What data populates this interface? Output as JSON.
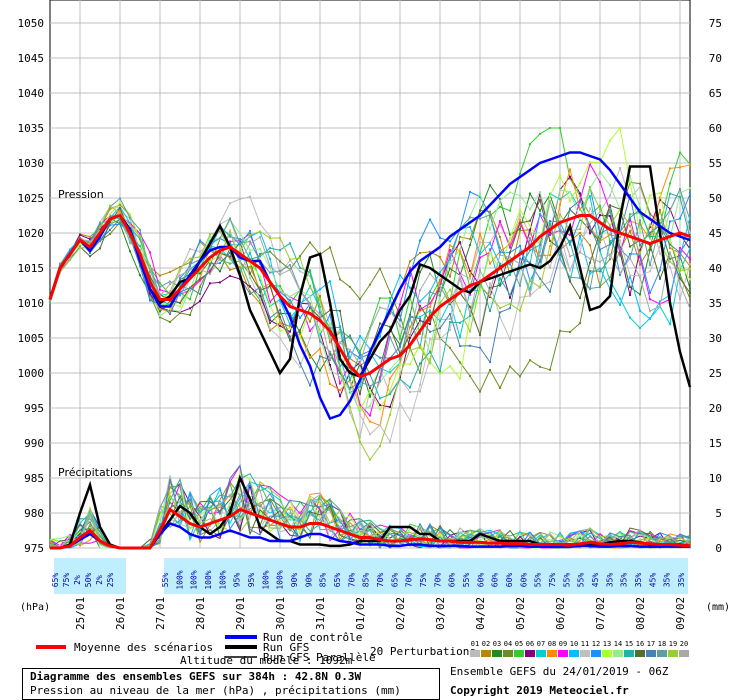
{
  "chart_data": {
    "type": "line",
    "pressure_label": "Pression",
    "precip_label": "Précipitations",
    "left_axis_unit": "(hPa)",
    "right_axis_unit": "(mm)",
    "left_ticks": [
      1050,
      1045,
      1040,
      1035,
      1030,
      1025,
      1020,
      1015,
      1010,
      1005,
      1000,
      995,
      990,
      985,
      980,
      975
    ],
    "right_ticks": [
      75,
      70,
      65,
      60,
      55,
      50,
      45,
      40,
      35,
      30,
      25,
      20,
      15,
      10,
      5,
      0
    ],
    "date_labels": [
      "25/01",
      "26/01",
      "27/01",
      "28/01",
      "29/01",
      "30/01",
      "31/01",
      "01/02",
      "02/02",
      "03/02",
      "04/02",
      "05/02",
      "06/02",
      "07/02",
      "08/02",
      "09/02"
    ],
    "precip_prob_labels": [
      "65%",
      "75%",
      "2%",
      "50%",
      "2%",
      "25%",
      "55%",
      "100%",
      "100%",
      "100%",
      "100%",
      "95%",
      "95%",
      "100%",
      "100%",
      "90%",
      "90%",
      "85%",
      "65%",
      "70%",
      "85%",
      "70%",
      "65%",
      "70%",
      "75%",
      "70%",
      "60%",
      "55%",
      "60%",
      "60%",
      "60%",
      "60%",
      "55%",
      "75%",
      "55%",
      "55%",
      "45%",
      "35%",
      "35%",
      "35%",
      "45%",
      "35%",
      "35%"
    ],
    "x_hours": [
      0,
      6,
      12,
      18,
      24,
      30,
      36,
      42,
      48,
      54,
      60,
      66,
      72,
      78,
      84,
      90,
      96,
      102,
      108,
      114,
      120,
      126,
      132,
      138,
      144,
      150,
      156,
      162,
      168,
      174,
      180,
      186,
      192,
      198,
      204,
      210,
      216,
      222,
      228,
      234,
      240,
      246,
      252,
      258,
      264,
      270,
      276,
      282,
      288,
      294,
      300,
      306,
      312,
      318,
      324,
      330,
      336,
      342,
      348,
      354,
      360,
      366,
      372,
      378,
      384
    ],
    "series": [
      {
        "name": "Moyenne des scénarios",
        "color": "#ff0000",
        "pressure": [
          1010.5,
          1015,
          1017,
          1019,
          1018,
          1020,
          1022,
          1022.5,
          1020,
          1017,
          1013,
          1010.5,
          1010.5,
          1012,
          1013.5,
          1015,
          1016.5,
          1017.5,
          1018,
          1017,
          1016,
          1015,
          1013,
          1011,
          1009.5,
          1009,
          1008.5,
          1007.5,
          1006,
          1003.5,
          1001,
          999.5,
          1000,
          1001,
          1002,
          1002.5,
          1004,
          1006,
          1008,
          1009.5,
          1010.5,
          1011.5,
          1012.5,
          1013,
          1014,
          1015,
          1016,
          1017,
          1018,
          1019.5,
          1020.5,
          1021.5,
          1022,
          1022.5,
          1022.5,
          1021.5,
          1020.5,
          1020,
          1019.5,
          1019,
          1018.5,
          1019,
          1019.5,
          1020,
          1019.5
        ],
        "precip": [
          0,
          0,
          0.3,
          1.5,
          2.5,
          1,
          0.3,
          0,
          0,
          0,
          0,
          2.5,
          5.5,
          4.5,
          3.5,
          3,
          3.5,
          4,
          4.5,
          5.5,
          5,
          4.5,
          4,
          3.5,
          3,
          3,
          3.5,
          3.5,
          3,
          2.5,
          2,
          1.5,
          1.5,
          1.2,
          1,
          1,
          1.2,
          1.3,
          1.2,
          1,
          1,
          0.8,
          0.8,
          0.8,
          0.7,
          0.7,
          0.6,
          0.6,
          0.5,
          0.5,
          0.5,
          0.5,
          0.4,
          0.6,
          0.8,
          0.6,
          0.5,
          0.6,
          0.8,
          0.7,
          0.6,
          0.5,
          0.5,
          0.4,
          0.3
        ]
      },
      {
        "name": "Run de contrôle",
        "color": "#0000ff",
        "pressure": [
          1010.5,
          1015,
          1017,
          1019,
          1017.5,
          1019.5,
          1022,
          1022.5,
          1020.5,
          1016,
          1012,
          1009.5,
          1009.5,
          1012,
          1014,
          1016,
          1017.5,
          1018,
          1018,
          1016.5,
          1016,
          1016,
          1013,
          1011,
          1008,
          1004,
          1001,
          996.5,
          993.5,
          994,
          996,
          999,
          1003,
          1006,
          1009,
          1012,
          1014.5,
          1016,
          1017,
          1018,
          1019.5,
          1020.5,
          1021.5,
          1022.5,
          1024,
          1025.5,
          1027,
          1028,
          1029,
          1030,
          1030.5,
          1031,
          1031.5,
          1031.5,
          1031,
          1030.5,
          1029,
          1027,
          1025,
          1023,
          1022,
          1021,
          1020,
          1019.5,
          1019
        ],
        "precip": [
          0,
          0,
          0.3,
          1.2,
          2,
          1,
          0.3,
          0,
          0,
          0,
          0,
          2,
          3.5,
          3,
          2,
          1.5,
          1.5,
          2,
          2.5,
          2,
          1.5,
          1.5,
          1,
          1,
          1,
          1.5,
          2,
          2,
          1.5,
          1,
          0.8,
          0.5,
          0.5,
          0.5,
          0.3,
          0.3,
          0.5,
          0.5,
          0.3,
          0.3,
          0.3,
          0.3,
          0.2,
          0.2,
          0.2,
          0.2,
          0.3,
          0.3,
          0.2,
          0.2,
          0.2,
          0.2,
          0.2,
          0.3,
          0.3,
          0.2,
          0.2,
          0.3,
          0.3,
          0.2,
          0.2,
          0.2,
          0.2,
          0.2,
          0.2
        ]
      },
      {
        "name": "Run GFS",
        "color": "#000000",
        "pressure": [
          1010.5,
          1015,
          1017,
          1019,
          1017.5,
          1019.5,
          1022,
          1022.5,
          1020.5,
          1016.5,
          1012,
          1010,
          1011,
          1013,
          1013.5,
          1016,
          1018.5,
          1021,
          1018,
          1014,
          1009,
          1006,
          1003,
          1000,
          1002,
          1011,
          1016.5,
          1017,
          1010,
          1002,
          1000,
          999.5,
          1002,
          1004.5,
          1006,
          1009,
          1011,
          1015.5,
          1015,
          1014,
          1013,
          1012,
          1011.5,
          1013,
          1013.5,
          1014,
          1014.5,
          1015,
          1015.5,
          1015,
          1016,
          1018,
          1021,
          1015,
          1009,
          1009.5,
          1011,
          1022,
          1029.5,
          1029.5,
          1029.5,
          1020,
          1010,
          1003,
          998
        ],
        "precip": [
          0,
          0,
          0.5,
          5,
          9,
          3,
          0.5,
          0,
          0,
          0,
          0,
          2,
          4,
          6,
          5,
          3,
          2,
          3,
          5,
          10,
          7,
          3,
          2,
          1,
          1,
          0.5,
          0.5,
          0.5,
          0.3,
          0.3,
          0.5,
          1,
          1,
          1,
          3,
          3,
          3,
          2,
          2,
          1,
          1,
          1,
          1,
          2,
          1.5,
          1,
          1,
          1,
          1,
          0.5,
          0.5,
          0.5,
          0.5,
          0.5,
          0.5,
          0.5,
          0.8,
          1,
          1,
          0.8,
          0.5,
          0.5,
          0.5,
          0.5,
          0.3
        ]
      }
    ],
    "legend": {
      "mean": "Moyenne des scénarios",
      "control": "Run de contrôle",
      "gfs": "Run GFS",
      "parallel": "Run GFS Parallèle",
      "perturbations": "20 Perturbations",
      "altitude": "Altitude du modèle : 1092m",
      "pert_numbers": [
        "01",
        "02",
        "03",
        "04",
        "05",
        "06",
        "07",
        "08",
        "09",
        "10",
        "11",
        "12",
        "13",
        "14",
        "15",
        "16",
        "17",
        "18",
        "19",
        "20"
      ],
      "pert_colors": [
        "#bbbbbb",
        "#b8860b",
        "#228b22",
        "#6b8e23",
        "#32cd32",
        "#800080",
        "#00ced1",
        "#ff8c00",
        "#ff00ff",
        "#00bfff",
        "#c0c0c0",
        "#1e90ff",
        "#adff2f",
        "#90ee90",
        "#20b2aa",
        "#556b2f",
        "#4682b4",
        "#5f9ea0",
        "#9acd32",
        "#a9a9a9"
      ]
    },
    "footer": {
      "title": "Diagramme des ensembles GEFS sur 384h : 42.8N 0.3W",
      "subtitle": "Pression au niveau de la mer (hPa) , précipitations (mm)",
      "run_info": "Ensemble GEFS du 24/01/2019 - 06Z",
      "copyright": "Copyright 2019 Meteociel.fr"
    }
  }
}
